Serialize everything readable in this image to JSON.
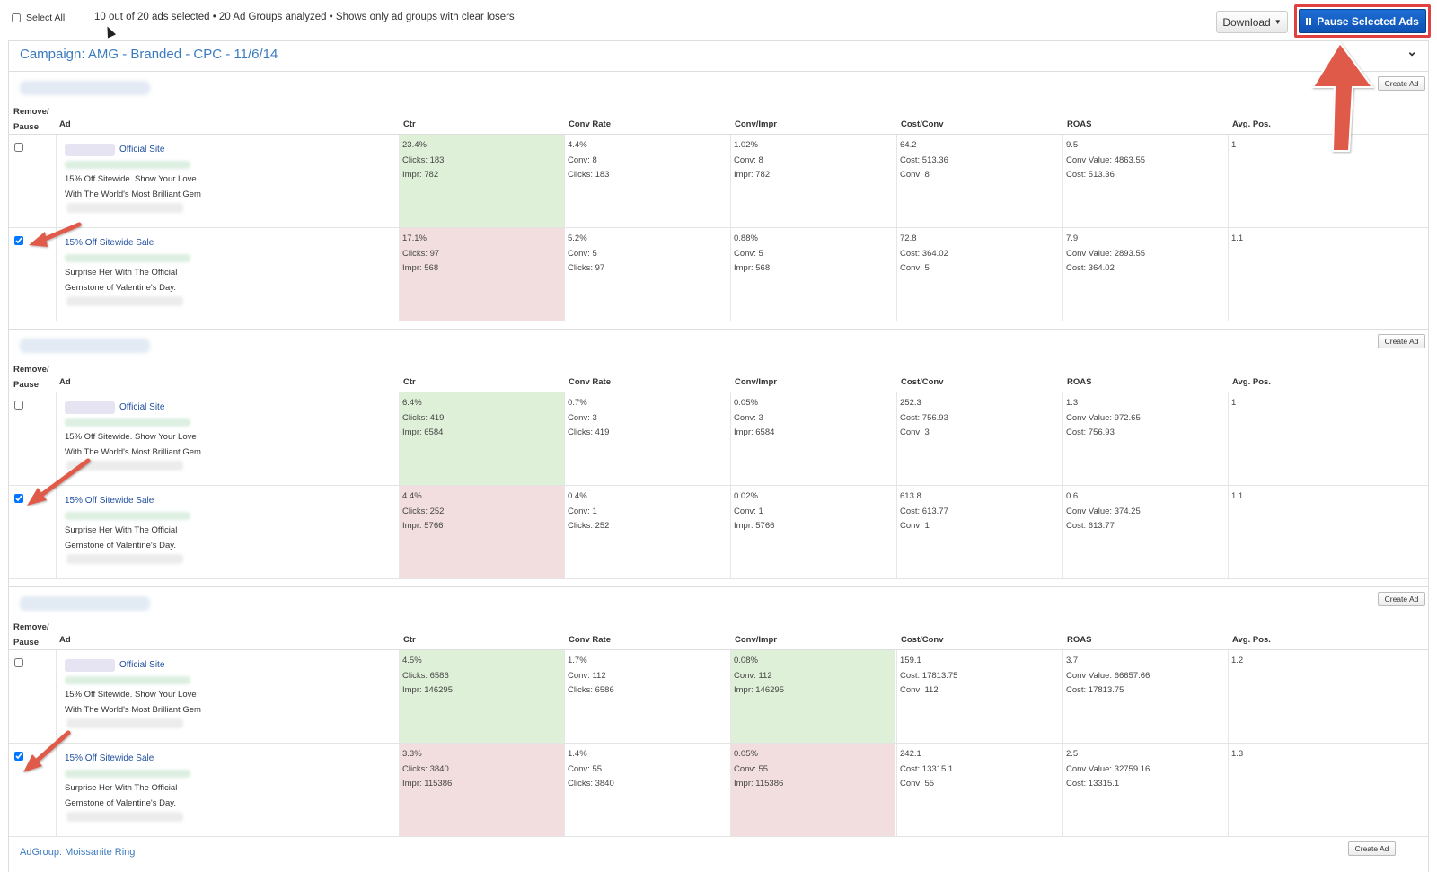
{
  "toolbar": {
    "select_all_label": "Select All",
    "summary": "10 out of 20 ads selected • 20 Ad Groups analyzed • Shows only ad groups with clear losers",
    "download_label": "Download",
    "pause_label": "Pause Selected Ads",
    "pause_icon": "pause-icon"
  },
  "campaign": {
    "title": "Campaign: AMG - Branded - CPC - 11/6/14",
    "collapse_icon": "chevron-down-icon"
  },
  "columns": {
    "remove_line1": "Remove/",
    "remove_line2": "Pause",
    "ad": "Ad",
    "ctr": "Ctr",
    "conv_rate": "Conv Rate",
    "conv_impr": "Conv/Impr",
    "cost_conv": "Cost/Conv",
    "roas": "ROAS",
    "avg_pos": "Avg. Pos."
  },
  "create_ad_label": "Create Ad",
  "adgroups": [
    {
      "rows": [
        {
          "checked": false,
          "ad_link": "Official Site",
          "ad_line1": "15% Off Sitewide. Show Your Love",
          "ad_line2": "With The World's Most Brilliant Gem",
          "ctr": [
            "23.4%",
            "Clicks: 183",
            "Impr: 782"
          ],
          "conv_rate": [
            "4.4%",
            "Conv: 8",
            "Clicks: 183"
          ],
          "conv_impr": [
            "1.02%",
            "Conv: 8",
            "Impr: 782"
          ],
          "cost_conv": [
            "64.2",
            "Cost: 513.36",
            "Conv: 8"
          ],
          "roas": [
            "9.5",
            "Conv Value: 4863.55",
            "Cost: 513.36"
          ],
          "avg_pos": "1"
        },
        {
          "checked": true,
          "ad_link": "15% Off Sitewide Sale",
          "ad_line1": "Surprise Her With The Official",
          "ad_line2": "Gemstone of Valentine's Day.",
          "ctr": [
            "17.1%",
            "Clicks: 97",
            "Impr: 568"
          ],
          "conv_rate": [
            "5.2%",
            "Conv: 5",
            "Clicks: 97"
          ],
          "conv_impr": [
            "0.88%",
            "Conv: 5",
            "Impr: 568"
          ],
          "cost_conv": [
            "72.8",
            "Cost: 364.02",
            "Conv: 5"
          ],
          "roas": [
            "7.9",
            "Conv Value: 2893.55",
            "Cost: 364.02"
          ],
          "avg_pos": "1.1"
        }
      ]
    },
    {
      "rows": [
        {
          "checked": false,
          "ad_link": "Official Site",
          "ad_line1": "15% Off Sitewide. Show Your Love",
          "ad_line2": "With The World's Most Brilliant Gem",
          "ctr": [
            "6.4%",
            "Clicks: 419",
            "Impr: 6584"
          ],
          "conv_rate": [
            "0.7%",
            "Conv: 3",
            "Clicks: 419"
          ],
          "conv_impr": [
            "0.05%",
            "Conv: 3",
            "Impr: 6584"
          ],
          "cost_conv": [
            "252.3",
            "Cost: 756.93",
            "Conv: 3"
          ],
          "roas": [
            "1.3",
            "Conv Value: 972.65",
            "Cost: 756.93"
          ],
          "avg_pos": "1"
        },
        {
          "checked": true,
          "ad_link": "15% Off Sitewide Sale",
          "ad_line1": "Surprise Her With The Official",
          "ad_line2": "Gemstone of Valentine's Day.",
          "ctr": [
            "4.4%",
            "Clicks: 252",
            "Impr: 5766"
          ],
          "conv_rate": [
            "0.4%",
            "Conv: 1",
            "Clicks: 252"
          ],
          "conv_impr": [
            "0.02%",
            "Conv: 1",
            "Impr: 5766"
          ],
          "cost_conv": [
            "613.8",
            "Cost: 613.77",
            "Conv: 1"
          ],
          "roas": [
            "0.6",
            "Conv Value: 374.25",
            "Cost: 613.77"
          ],
          "avg_pos": "1.1"
        }
      ]
    },
    {
      "rows": [
        {
          "checked": false,
          "ad_link": "Official Site",
          "ad_line1": "15% Off Sitewide. Show Your Love",
          "ad_line2": "With The World's Most Brilliant Gem",
          "ctr": [
            "4.5%",
            "Clicks: 6586",
            "Impr: 146295"
          ],
          "conv_rate": [
            "1.7%",
            "Conv: 112",
            "Clicks: 6586"
          ],
          "conv_impr": [
            "0.08%",
            "Conv: 112",
            "Impr: 146295"
          ],
          "cost_conv": [
            "159.1",
            "Cost: 17813.75",
            "Conv: 112"
          ],
          "roas": [
            "3.7",
            "Conv Value: 66657.66",
            "Cost: 17813.75"
          ],
          "avg_pos": "1.2"
        },
        {
          "checked": true,
          "ad_link": "15% Off Sitewide Sale",
          "ad_line1": "Surprise Her With The Official",
          "ad_line2": "Gemstone of Valentine's Day.",
          "ctr": [
            "3.3%",
            "Clicks: 3840",
            "Impr: 115386"
          ],
          "conv_rate": [
            "1.4%",
            "Conv: 55",
            "Clicks: 3840"
          ],
          "conv_impr": [
            "0.05%",
            "Conv: 55",
            "Impr: 115386"
          ],
          "cost_conv": [
            "242.1",
            "Cost: 13315.1",
            "Conv: 55"
          ],
          "roas": [
            "2.5",
            "Conv Value: 32759.16",
            "Cost: 13315.1"
          ],
          "avg_pos": "1.3"
        }
      ]
    }
  ],
  "next_adgroup_label": "AdGroup: Moissanite Ring",
  "colors": {
    "winner": "#dff0d8",
    "loser": "#f2dede",
    "accent": "#1f63c6",
    "annotation": "#e05a4a"
  }
}
